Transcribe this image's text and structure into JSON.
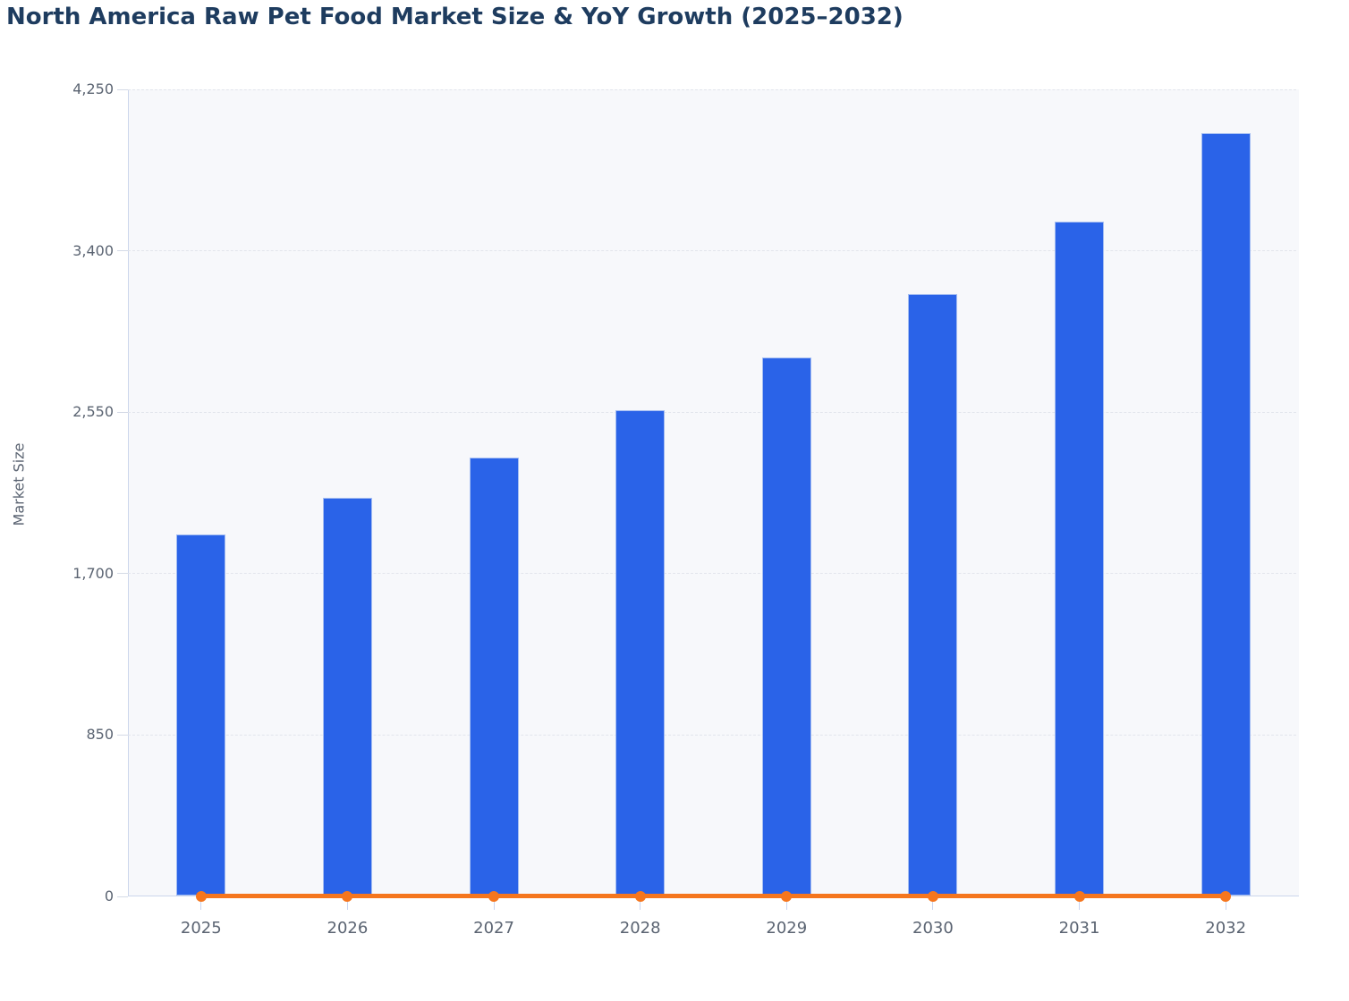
{
  "chart_data": {
    "type": "bar",
    "title": "North America Raw Pet Food Market Size & YoY Growth (2025–2032)",
    "xlabel": "",
    "ylabel": "Market Size",
    "categories": [
      "2025",
      "2026",
      "2027",
      "2028",
      "2029",
      "2030",
      "2031",
      "2032"
    ],
    "series": [
      {
        "name": "Market Size",
        "type": "bar",
        "color": "#2a63e8",
        "values": [
          1905,
          2100,
          2310,
          2560,
          2840,
          3170,
          3555,
          4020
        ]
      },
      {
        "name": "YoY Growth",
        "type": "line",
        "color": "#f5761e",
        "values_visual": [
          0,
          0,
          0,
          0,
          0,
          0,
          0,
          0
        ],
        "note": "Orange line with circular markers renders flat at ~0 on the left Market Size axis; YoY percentage values are not labeled anywhere in the chart."
      }
    ],
    "ylim": [
      0,
      4250
    ],
    "yticks": [
      {
        "v": 0,
        "label": "0"
      },
      {
        "v": 850,
        "label": "850"
      },
      {
        "v": 1700,
        "label": "1,700"
      },
      {
        "v": 2550,
        "label": "2,550"
      },
      {
        "v": 3400,
        "label": "3,400"
      },
      {
        "v": 4250,
        "label": "4,250"
      }
    ],
    "grid": "horizontal dashed",
    "legend": "none"
  },
  "colors": {
    "bar_fill": "#2a63e8",
    "bar_border": "#a4bdf2",
    "line_orange": "#f5761e",
    "title_text": "#1e3c5f",
    "tick_text": "#5b6472",
    "axis_line": "#ccd6ec",
    "gridline": "#e2e5ec",
    "plot_background": "#f7f8fb"
  }
}
